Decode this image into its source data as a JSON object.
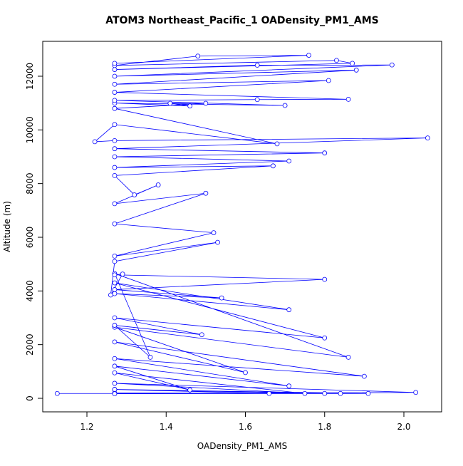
{
  "chart_data": {
    "type": "line",
    "title": "ATOM3 Northeast_Pacific_1 OADensity_PM1_AMS",
    "x_label": "OADensity_PM1_AMS",
    "y_label": "Altitude (m)",
    "color": "#0000ff",
    "markers": true,
    "xlim": [
      1.0885,
      2.0953
    ],
    "ylim": [
      -504,
      13300
    ],
    "xticks": [
      1.2,
      1.4,
      1.6,
      1.8,
      {
        "value": 2,
        "label": "2.0"
      }
    ],
    "yticks": [
      0,
      2000,
      4000,
      6000,
      8000,
      10000,
      12000
    ],
    "x": [
      1.125,
      1.27,
      1.66,
      1.27,
      1.84,
      1.27,
      1.8,
      1.27,
      1.91,
      1.27,
      2.03,
      1.27,
      1.75,
      1.27,
      1.46,
      1.27,
      1.71,
      1.27,
      1.9,
      1.27,
      1.6,
      1.27,
      1.86,
      1.27,
      1.36,
      1.27,
      1.49,
      1.27,
      1.8,
      1.27,
      1.71,
      1.27,
      1.54,
      1.27,
      1.8,
      1.27,
      1.29,
      1.26,
      1.27,
      1.53,
      1.27,
      1.52,
      1.27,
      1.5,
      1.27,
      1.38,
      1.32,
      1.27,
      1.67,
      1.27,
      1.71,
      1.27,
      1.8,
      1.27,
      2.06,
      1.27,
      1.22,
      1.27,
      1.68,
      1.27,
      1.5,
      1.41,
      1.46,
      1.27,
      1.7,
      1.27,
      1.63,
      1.86,
      1.27,
      1.81,
      1.27,
      1.88,
      1.27,
      1.97,
      1.63,
      1.27,
      1.87,
      1.83,
      1.27,
      1.48,
      1.76,
      1.27
    ],
    "y": [
      180,
      180,
      180,
      330,
      180,
      200,
      180,
      330,
      180,
      170,
      220,
      560,
      180,
      950,
      310,
      1200,
      460,
      1480,
      820,
      2100,
      960,
      2650,
      1530,
      4650,
      1530,
      2720,
      2370,
      3000,
      2250,
      4300,
      3300,
      3900,
      3740,
      4050,
      4430,
      4600,
      4630,
      3850,
      5100,
      5810,
      5300,
      6170,
      6500,
      7640,
      7250,
      7950,
      7580,
      8300,
      8660,
      8600,
      8840,
      9000,
      9140,
      9300,
      9700,
      9600,
      9560,
      10200,
      9480,
      10800,
      10990,
      10990,
      10890,
      11000,
      10910,
      11100,
      11130,
      11140,
      11400,
      11840,
      11700,
      12230,
      12000,
      12420,
      12410,
      12250,
      12480,
      12590,
      12400,
      12750,
      12780,
      12480
    ]
  }
}
